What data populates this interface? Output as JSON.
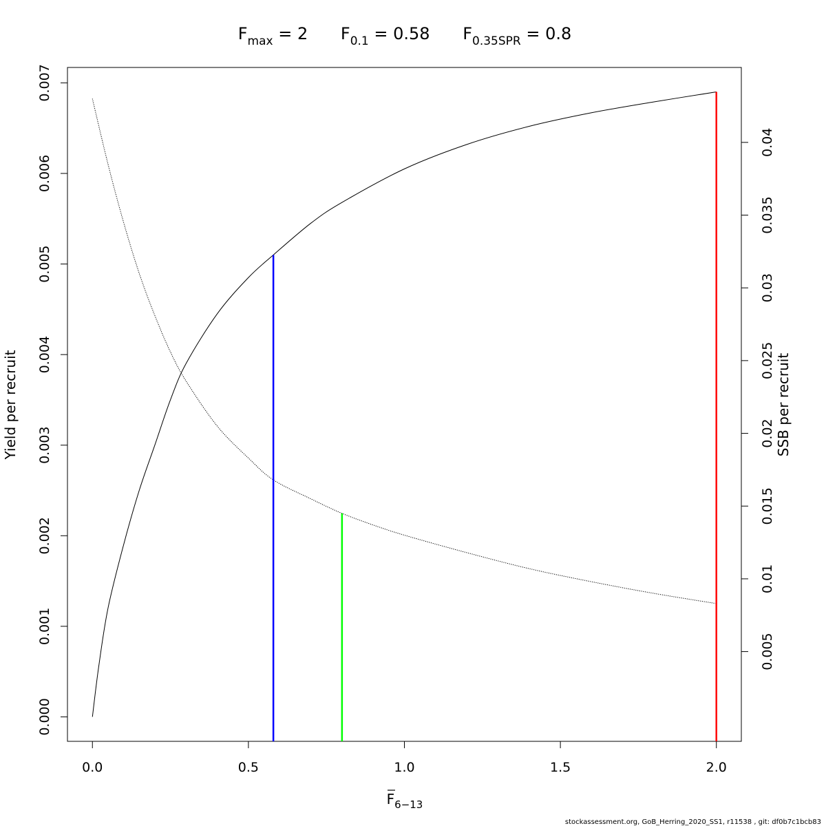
{
  "title": {
    "parts": [
      {
        "main": "F",
        "sub": "max",
        "rest": " = 2"
      },
      {
        "main": "F",
        "sub": "0.1",
        "rest": " = 0.58"
      },
      {
        "main": "F",
        "sub": "0.35SPR",
        "rest": " = 0.8"
      }
    ]
  },
  "footer": "stockassessment.org, GoB_Herring_2020_SS1, r11538 , git: df0b7c1bcb83",
  "chart_data": {
    "type": "line",
    "x_axis": {
      "label_main": "F",
      "label_sub": "6−13",
      "overbar": true,
      "range": [
        -0.08,
        2.08
      ],
      "ticks": [
        0.0,
        0.5,
        1.0,
        1.5,
        2.0
      ],
      "tick_labels": [
        "0.0",
        "0.5",
        "1.0",
        "1.5",
        "2.0"
      ]
    },
    "y_left": {
      "label": "Yield per recruit",
      "range": [
        -0.00027,
        0.00717
      ],
      "ticks": [
        0.0,
        0.001,
        0.002,
        0.003,
        0.004,
        0.005,
        0.006,
        0.007
      ],
      "tick_labels": [
        "0.000",
        "0.001",
        "0.002",
        "0.003",
        "0.004",
        "0.005",
        "0.006",
        "0.007"
      ]
    },
    "y_right": {
      "label": "SSB per recruit",
      "range": [
        -0.00117,
        0.04515
      ],
      "ticks": [
        0.005,
        0.01,
        0.015,
        0.02,
        0.025,
        0.03,
        0.035,
        0.04
      ],
      "tick_labels": [
        "0.005",
        "0.01",
        "0.015",
        "0.02",
        "0.025",
        "0.03",
        "0.035",
        "0.04"
      ]
    },
    "series": [
      {
        "axis": "left",
        "style": "solid",
        "color": "#000000",
        "x": [
          0.0,
          0.02,
          0.05,
          0.1,
          0.15,
          0.2,
          0.25,
          0.3,
          0.4,
          0.5,
          0.58,
          0.7,
          0.8,
          1.0,
          1.2,
          1.4,
          1.6,
          1.8,
          2.0
        ],
        "y": [
          0.0,
          0.00055,
          0.0012,
          0.0019,
          0.0025,
          0.003,
          0.0035,
          0.0039,
          0.00445,
          0.00485,
          0.0051,
          0.00545,
          0.00568,
          0.00605,
          0.00632,
          0.00652,
          0.00667,
          0.00679,
          0.0069
        ]
      },
      {
        "axis": "right",
        "style": "dotted",
        "color": "#000000",
        "x": [
          0.0,
          0.05,
          0.1,
          0.15,
          0.2,
          0.25,
          0.3,
          0.4,
          0.5,
          0.58,
          0.7,
          0.8,
          0.9,
          1.0,
          1.2,
          1.4,
          1.6,
          1.8,
          2.0
        ],
        "y": [
          0.043,
          0.0385,
          0.0345,
          0.031,
          0.0281,
          0.0256,
          0.0236,
          0.0205,
          0.0183,
          0.0168,
          0.0155,
          0.0145,
          0.0137,
          0.013,
          0.0118,
          0.0107,
          0.0098,
          0.009,
          0.0083
        ]
      }
    ],
    "reference_lines": [
      {
        "x": 0.58,
        "axis": "left",
        "y_top": 0.0051,
        "color": "#0000ff"
      },
      {
        "x": 0.8,
        "axis": "right",
        "y_top": 0.0145,
        "color": "#00ff00"
      },
      {
        "x": 2.0,
        "axis": "left",
        "y_top": 0.0069,
        "color": "#ff0000"
      }
    ]
  }
}
